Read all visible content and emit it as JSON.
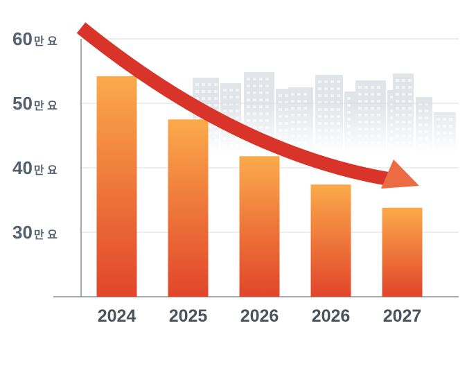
{
  "chart_data": {
    "type": "bar",
    "title": "",
    "xlabel": "",
    "ylabel": "",
    "categories": [
      "2024",
      "2025",
      "2026",
      "2026",
      "2027"
    ],
    "values": [
      54.2,
      47.5,
      41.8,
      37.4,
      33.8
    ],
    "y_unit": "만 요",
    "y_ticks": [
      30,
      40,
      50,
      60
    ],
    "y_tick_labels": [
      {
        "num": "30",
        "unit": "만 요"
      },
      {
        "num": "40",
        "unit": "만 요"
      },
      {
        "num": "50",
        "unit": "만 요"
      },
      {
        "num": "60",
        "unit": "만 요"
      }
    ],
    "ylim": [
      20,
      60
    ],
    "grid": true,
    "trend_arrow": "downward",
    "bar_color_top": "#fbaa4b",
    "bar_color_bottom": "#e1452a",
    "arrow_color": "#d8342a",
    "skyline_color": "#c9d0d8"
  }
}
